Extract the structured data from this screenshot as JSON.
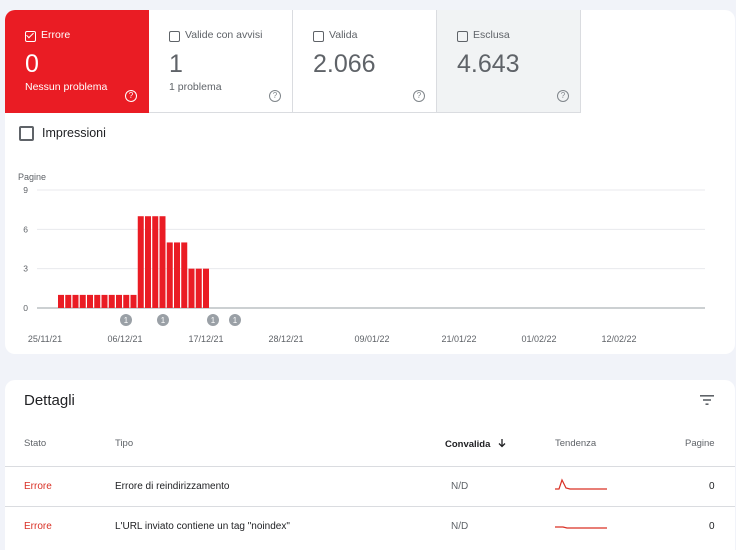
{
  "tiles": [
    {
      "label": "Errore",
      "count": "0",
      "sub": "Nessun problema",
      "active": true
    },
    {
      "label": "Valide con avvisi",
      "count": "1",
      "sub": "1 problema",
      "active": false
    },
    {
      "label": "Valida",
      "count": "2.066",
      "sub": "",
      "active": false
    },
    {
      "label": "Esclusa",
      "count": "4.643",
      "sub": "",
      "active": false
    }
  ],
  "impressions": {
    "label": "Impressioni"
  },
  "help_glyph": "?",
  "chart_data": {
    "type": "bar",
    "ylabel": "Pagine",
    "ylim": [
      0,
      9
    ],
    "yticks": [
      0,
      3,
      6,
      9
    ],
    "x_labels": [
      "25/11/21",
      "06/12/21",
      "17/12/21",
      "28/12/21",
      "09/01/22",
      "21/01/22",
      "01/02/22",
      "12/02/22"
    ],
    "values": [
      1,
      1,
      1,
      1,
      1,
      1,
      1,
      1,
      1,
      1,
      1,
      7,
      7,
      7,
      7,
      5,
      5,
      5,
      3,
      3,
      3
    ],
    "annotations": [
      "1",
      "1",
      "1",
      "1"
    ],
    "color": "#ea1c24",
    "grid": true
  },
  "details": {
    "title": "Dettagli",
    "headers": {
      "stato": "Stato",
      "tipo": "Tipo",
      "convalida": "Convalida",
      "tendenza": "Tendenza",
      "pagine": "Pagine"
    },
    "rows": [
      {
        "stato": "Errore",
        "tipo": "Errore di reindirizzamento",
        "convalida": "N/D",
        "pagine": "0"
      },
      {
        "stato": "Errore",
        "tipo": "L'URL inviato contiene un tag \"noindex\"",
        "convalida": "N/D",
        "pagine": "0"
      }
    ]
  },
  "accent_color": "#ea1c24"
}
